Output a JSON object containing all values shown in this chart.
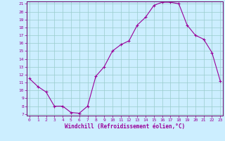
{
  "x": [
    0,
    1,
    2,
    3,
    4,
    5,
    6,
    7,
    8,
    9,
    10,
    11,
    12,
    13,
    14,
    15,
    16,
    17,
    18,
    19,
    20,
    21,
    22,
    23
  ],
  "y": [
    11.5,
    10.5,
    9.8,
    8.0,
    8.0,
    7.2,
    7.1,
    8.0,
    11.8,
    13.0,
    15.0,
    15.8,
    16.3,
    18.3,
    19.3,
    20.8,
    21.2,
    21.2,
    21.0,
    18.3,
    17.0,
    16.5,
    14.8,
    11.2
  ],
  "line_color": "#990099",
  "marker": "+",
  "marker_color": "#990099",
  "bg_color": "#cceeff",
  "grid_color": "#99cccc",
  "xlabel": "Windchill (Refroidissement éolien,°C)",
  "xlabel_color": "#990099",
  "tick_color": "#990099",
  "spine_color": "#660066",
  "ylim_min": 7,
  "ylim_max": 21,
  "xlim_min": 0,
  "xlim_max": 23,
  "yticks": [
    7,
    8,
    9,
    10,
    11,
    12,
    13,
    14,
    15,
    16,
    17,
    18,
    19,
    20,
    21
  ],
  "xticks": [
    0,
    1,
    2,
    3,
    4,
    5,
    6,
    7,
    8,
    9,
    10,
    11,
    12,
    13,
    14,
    15,
    16,
    17,
    18,
    19,
    20,
    21,
    22,
    23
  ]
}
